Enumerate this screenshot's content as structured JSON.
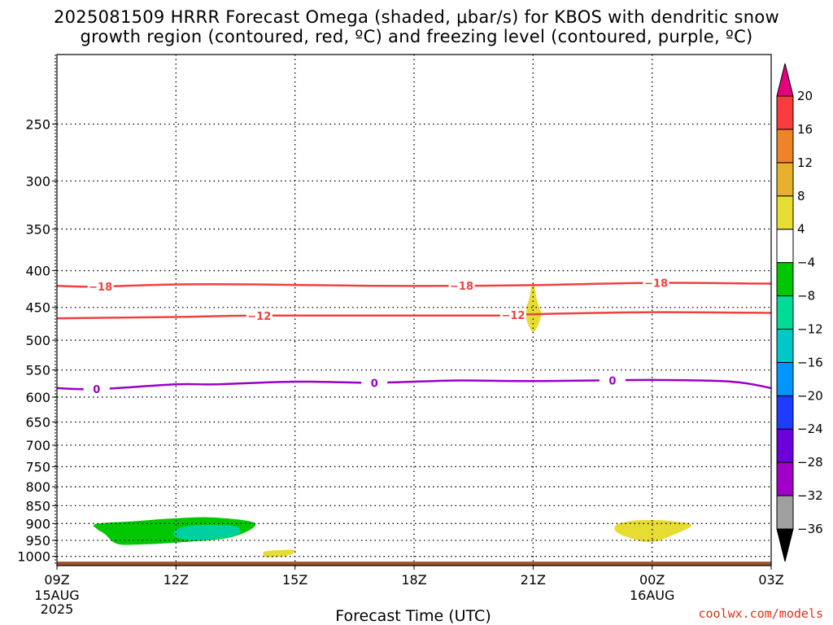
{
  "title": {
    "line1": "2025081509 HRRR Forecast Omega (shaded, μbar/s) for KBOS with dendritic snow",
    "line2": "growth region (contoured, red, ºC) and freezing level (contoured, purple, ºC)"
  },
  "credit": "coolwx.com/models",
  "chart_data": {
    "type": "contour",
    "title": "2025081509 HRRR Forecast Omega (shaded, μbar/s) for KBOS with dendritic snow growth region (contoured, red, ºC) and freezing level (contoured, purple, ºC)",
    "xlabel": "Forecast Time (UTC)",
    "ylabel": "",
    "x_ticks": [
      {
        "hour": 0,
        "label": "09Z",
        "sub": [
          "15AUG",
          "2025"
        ]
      },
      {
        "hour": 3,
        "label": "12Z",
        "sub": []
      },
      {
        "hour": 6,
        "label": "15Z",
        "sub": []
      },
      {
        "hour": 9,
        "label": "18Z",
        "sub": []
      },
      {
        "hour": 12,
        "label": "21Z",
        "sub": []
      },
      {
        "hour": 15,
        "label": "00Z",
        "sub": [
          "16AUG"
        ]
      },
      {
        "hour": 18,
        "label": "03Z",
        "sub": []
      }
    ],
    "xlim": [
      0,
      18
    ],
    "y_ticks": [
      250,
      300,
      350,
      400,
      450,
      500,
      550,
      600,
      650,
      700,
      750,
      800,
      850,
      900,
      950,
      1000
    ],
    "ylim": [
      1030,
      200
    ],
    "y_scale": "log-pressure",
    "grid": true,
    "colorbar": {
      "levels": [
        -36,
        -32,
        -28,
        -24,
        -20,
        -16,
        -12,
        -8,
        -4,
        4,
        8,
        12,
        16,
        20
      ],
      "colors": [
        "#000000",
        "#a0a0a0",
        "#a000c8",
        "#6e00dc",
        "#1e3cff",
        "#0096ff",
        "#00c8c8",
        "#00dc96",
        "#00c800",
        "#ffffff",
        "#e6dc32",
        "#e6af2d",
        "#f08228",
        "#fa3c3c",
        "#e6007d"
      ]
    },
    "contours": [
      {
        "series": "dendritic",
        "label": "-18",
        "color": "#f04040",
        "points": [
          [
            0,
            420
          ],
          [
            1,
            421
          ],
          [
            3,
            418
          ],
          [
            5,
            418
          ],
          [
            8,
            420
          ],
          [
            10,
            420
          ],
          [
            12,
            419
          ],
          [
            15,
            416
          ],
          [
            18,
            417
          ]
        ],
        "label_hours": [
          1.1,
          10.2,
          15.1
        ]
      },
      {
        "series": "dendritic",
        "label": "-12",
        "color": "#f04040",
        "points": [
          [
            0,
            466
          ],
          [
            3,
            464
          ],
          [
            5,
            462
          ],
          [
            9,
            462
          ],
          [
            11,
            462
          ],
          [
            12,
            460
          ],
          [
            15,
            457
          ],
          [
            18,
            458
          ]
        ],
        "label_hours": [
          5.1,
          11.5
        ]
      },
      {
        "series": "freezing",
        "label": "0",
        "color": "#9a00c8",
        "points": [
          [
            0,
            583
          ],
          [
            1,
            585
          ],
          [
            3,
            576
          ],
          [
            4,
            576
          ],
          [
            6,
            571
          ],
          [
            8,
            573
          ],
          [
            10,
            569
          ],
          [
            12,
            570
          ],
          [
            15,
            568
          ],
          [
            17,
            571
          ],
          [
            18,
            583
          ]
        ],
        "label_hours": [
          1.0,
          8.0,
          14.0
        ]
      }
    ],
    "shaded": [
      {
        "value_range": [
          -8,
          -4
        ],
        "color": "#00c800",
        "points": [
          [
            1,
            901
          ],
          [
            2,
            893
          ],
          [
            3,
            885
          ],
          [
            4,
            883
          ],
          [
            5.0,
            900
          ],
          [
            4.4,
            940
          ],
          [
            3,
            957
          ],
          [
            2.0,
            963
          ],
          [
            1.5,
            960
          ],
          [
            1.2,
            930
          ],
          [
            1,
            915
          ]
        ]
      },
      {
        "value_range": [
          -12,
          -8
        ],
        "color": "#00d0a0",
        "points": [
          [
            3,
            918
          ],
          [
            3.5,
            905
          ],
          [
            4.5,
            908
          ],
          [
            4.5,
            935
          ],
          [
            3.5,
            950
          ],
          [
            3,
            940
          ]
        ]
      },
      {
        "value_range": [
          4,
          8
        ],
        "color": "#e6dc32",
        "points": [
          [
            5.3,
            983
          ],
          [
            6.0,
            980
          ],
          [
            5.8,
            998
          ],
          [
            5.3,
            1003
          ],
          [
            5.2,
            993
          ]
        ]
      },
      {
        "value_range": [
          4,
          8
        ],
        "color": "#e6dc32",
        "points": [
          [
            12,
            415
          ],
          [
            12.1,
            440
          ],
          [
            12.2,
            462
          ],
          [
            12,
            487
          ],
          [
            11.8,
            460
          ],
          [
            11.9,
            438
          ]
        ]
      },
      {
        "value_range": [
          4,
          8
        ],
        "color": "#e6dc32",
        "points": [
          [
            14.1,
            904
          ],
          [
            14.5,
            892
          ],
          [
            15,
            890
          ],
          [
            15.5,
            893
          ],
          [
            16.0,
            904
          ],
          [
            15.6,
            930
          ],
          [
            15,
            955
          ],
          [
            14.5,
            945
          ],
          [
            14.1,
            925
          ]
        ]
      }
    ],
    "terrain": {
      "color": "#a0522d",
      "top_pressure": 1017
    }
  }
}
